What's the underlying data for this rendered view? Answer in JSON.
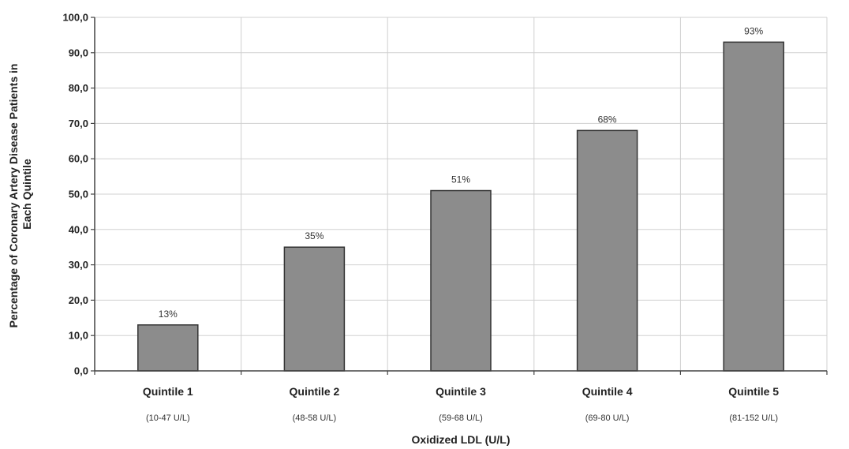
{
  "chart_data": {
    "type": "bar",
    "categories": [
      "Quintile 1",
      "Quintile 2",
      "Quintile 3",
      "Quintile 4",
      "Quintile 5"
    ],
    "category_subtitles": [
      "(10-47 U/L)",
      "(48-58 U/L)",
      "(59-68 U/L)",
      "(69-80 U/L)",
      "(81-152 U/L)"
    ],
    "values": [
      13,
      35,
      51,
      68,
      93
    ],
    "data_labels": [
      "13%",
      "35%",
      "51%",
      "68%",
      "93%"
    ],
    "xlabel": "Oxidized LDL (U/L)",
    "ylabel_lines": [
      "Percentage of Coronary Artery Disease Patients in",
      "Each Quintile"
    ],
    "ylim": [
      0,
      100
    ],
    "yticks": [
      0,
      10,
      20,
      30,
      40,
      50,
      60,
      70,
      80,
      90,
      100
    ],
    "ytick_labels": [
      "0,0",
      "10,0",
      "20,0",
      "30,0",
      "40,0",
      "50,0",
      "60,0",
      "70,0",
      "80,0",
      "90,0",
      "100,0"
    ],
    "grid": true,
    "bar_color": "#8c8c8c",
    "bar_edge_color": "#333333"
  }
}
